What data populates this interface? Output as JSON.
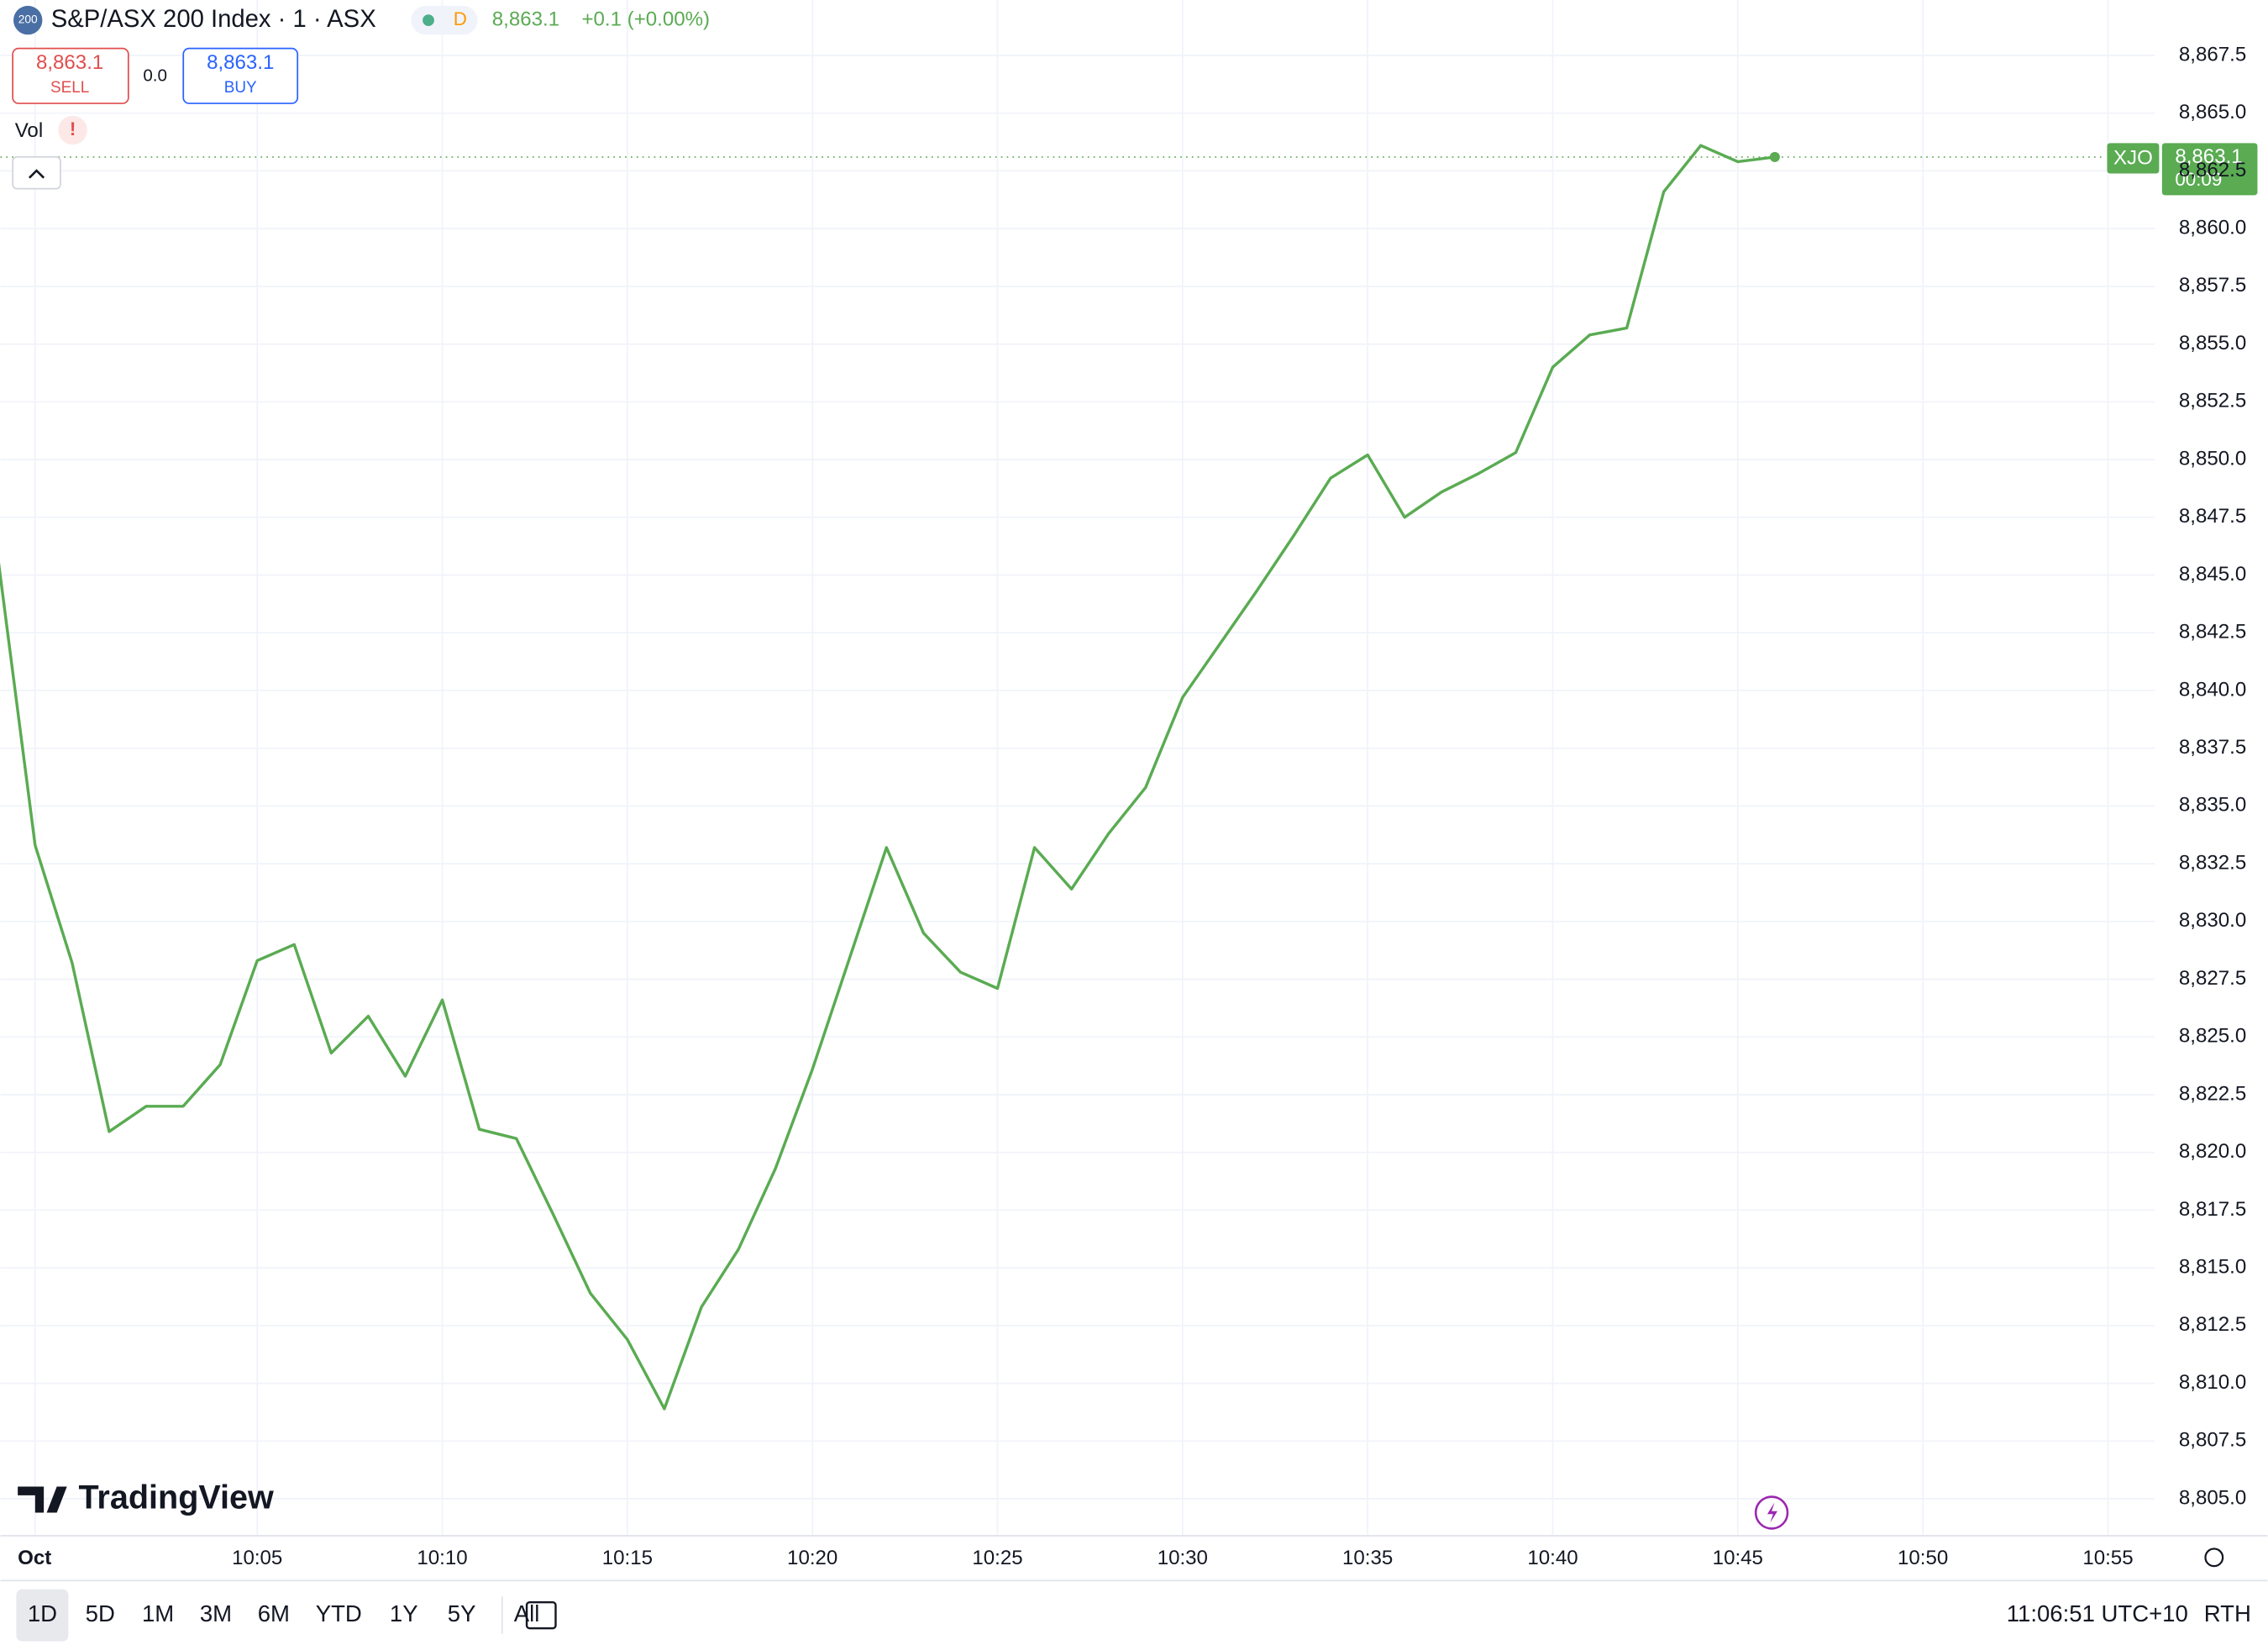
{
  "chart_data": {
    "type": "line",
    "categories": [
      null,
      "Oct",
      null,
      null,
      null,
      null,
      null,
      "10:05",
      null,
      null,
      null,
      null,
      "10:10",
      null,
      null,
      null,
      null,
      "10:15",
      null,
      null,
      null,
      null,
      "10:20",
      null,
      null,
      null,
      null,
      "10:25",
      null,
      null,
      null,
      null,
      "10:30",
      null,
      null,
      null,
      null,
      "10:35",
      null,
      null,
      null,
      null,
      "10:40",
      null,
      null,
      null,
      null,
      "10:45",
      null,
      null,
      null,
      null,
      "10:50",
      null,
      null,
      null,
      null,
      "10:55"
    ],
    "series": [
      {
        "name": "XJO",
        "color": "#5aab52",
        "values": [
          8845.7,
          8833.3,
          8828.2,
          8820.9,
          8822.0,
          8822.0,
          8823.8,
          8828.3,
          8829.0,
          8824.3,
          8825.9,
          8823.3,
          8826.6,
          8821.0,
          8820.6,
          8817.3,
          8813.9,
          8811.9,
          8808.9,
          8813.3,
          8815.8,
          8819.3,
          8823.6,
          8828.4,
          8833.2,
          8829.5,
          8827.8,
          8827.1,
          8833.2,
          8831.4,
          8833.8,
          8835.8,
          8839.7,
          8842.0,
          8844.3,
          8846.7,
          8849.2,
          8850.2,
          8847.5,
          8848.6,
          8849.4,
          8850.3,
          8854.0,
          8855.4,
          8855.7,
          8861.6,
          8863.6,
          8862.9,
          8863.1,
          null,
          null,
          null,
          null,
          null,
          null,
          null,
          null,
          null
        ]
      }
    ],
    "ylim": [
      8803.4,
      8869.9
    ],
    "yticks": [
      {
        "value": 8805,
        "label": "8,805.0"
      },
      {
        "value": 8807.5,
        "label": "8,807.5"
      },
      {
        "value": 8810,
        "label": "8,810.0"
      },
      {
        "value": 8812.5,
        "label": "8,812.5"
      },
      {
        "value": 8815,
        "label": "8,815.0"
      },
      {
        "value": 8817.5,
        "label": "8,817.5"
      },
      {
        "value": 8820,
        "label": "8,820.0"
      },
      {
        "value": 8822.5,
        "label": "8,822.5"
      },
      {
        "value": 8825,
        "label": "8,825.0"
      },
      {
        "value": 8827.5,
        "label": "8,827.5"
      },
      {
        "value": 8830,
        "label": "8,830.0"
      },
      {
        "value": 8832.5,
        "label": "8,832.5"
      },
      {
        "value": 8835,
        "label": "8,835.0"
      },
      {
        "value": 8837.5,
        "label": "8,837.5"
      },
      {
        "value": 8840,
        "label": "8,840.0"
      },
      {
        "value": 8842.5,
        "label": "8,842.5"
      },
      {
        "value": 8845,
        "label": "8,845.0"
      },
      {
        "value": 8847.5,
        "label": "8,847.5"
      },
      {
        "value": 8850,
        "label": "8,850.0"
      },
      {
        "value": 8852.5,
        "label": "8,852.5"
      },
      {
        "value": 8855,
        "label": "8,855.0"
      },
      {
        "value": 8857.5,
        "label": "8,857.5"
      },
      {
        "value": 8860,
        "label": "8,860.0"
      },
      {
        "value": 8862.5,
        "label": "8,862.5"
      },
      {
        "value": 8865,
        "label": "8,865.0"
      },
      {
        "value": 8867.5,
        "label": "8,867.5"
      }
    ],
    "grid": true
  },
  "ui": {
    "icon": "200",
    "title": "S&P/ASX 200 Index · 1 · ASX",
    "badge": "D",
    "price": "8,863.1",
    "change": "+0.1 (+0.00%)",
    "sell_price": "8,863.1",
    "sell": "SELL",
    "spread": "0.0",
    "buy_price": "8,863.1",
    "buy": "BUY",
    "vol": "Vol",
    "vol_alert": "!",
    "symbol_tag": "XJO",
    "last_price": "8,863.1",
    "countdown": "00:09",
    "logo": "TradingView",
    "ranges": [
      "1D",
      "5D",
      "1M",
      "3M",
      "6M",
      "YTD",
      "1Y",
      "5Y",
      "All"
    ],
    "clock": "11:06:51 UTC+10",
    "session": "RTH"
  }
}
